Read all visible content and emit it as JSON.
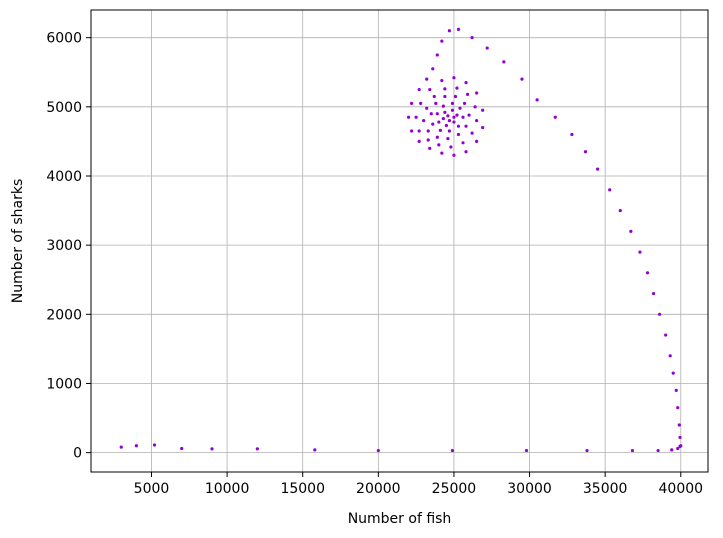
{
  "chart_data": {
    "type": "scatter",
    "title": "",
    "xlabel": "Number of fish",
    "ylabel": "Number of sharks",
    "xlim": [
      1000,
      41800
    ],
    "ylim": [
      -280,
      6400
    ],
    "xticks": [
      5000,
      10000,
      15000,
      20000,
      25000,
      30000,
      35000,
      40000
    ],
    "yticks": [
      0,
      1000,
      2000,
      3000,
      4000,
      5000,
      6000
    ],
    "grid": true,
    "legend": "none",
    "marker_color": "#9400d3",
    "series": [
      {
        "approximate": true,
        "points": [
          [
            40000,
            100
          ],
          [
            39950,
            220
          ],
          [
            39900,
            400
          ],
          [
            39800,
            650
          ],
          [
            39700,
            900
          ],
          [
            39500,
            1150
          ],
          [
            39300,
            1400
          ],
          [
            39000,
            1700
          ],
          [
            38600,
            2000
          ],
          [
            38200,
            2300
          ],
          [
            37800,
            2600
          ],
          [
            37300,
            2900
          ],
          [
            36700,
            3200
          ],
          [
            36000,
            3500
          ],
          [
            35300,
            3800
          ],
          [
            34500,
            4100
          ],
          [
            33700,
            4350
          ],
          [
            32800,
            4600
          ],
          [
            31700,
            4850
          ],
          [
            30500,
            5100
          ],
          [
            29500,
            5400
          ],
          [
            28300,
            5650
          ],
          [
            27200,
            5850
          ],
          [
            26200,
            6000
          ],
          [
            25300,
            6120
          ],
          [
            24700,
            6100
          ],
          [
            24200,
            5950
          ],
          [
            23900,
            5750
          ],
          [
            23600,
            5550
          ],
          [
            23200,
            5400
          ],
          [
            22700,
            5250
          ],
          [
            22200,
            5050
          ],
          [
            22000,
            4850
          ],
          [
            22200,
            4650
          ],
          [
            22700,
            4500
          ],
          [
            23400,
            4400
          ],
          [
            24200,
            4330
          ],
          [
            25000,
            4300
          ],
          [
            25800,
            4350
          ],
          [
            26500,
            4500
          ],
          [
            26900,
            4700
          ],
          [
            26900,
            4950
          ],
          [
            26500,
            5200
          ],
          [
            25800,
            5350
          ],
          [
            25000,
            5420
          ],
          [
            24200,
            5380
          ],
          [
            23400,
            5250
          ],
          [
            22800,
            5050
          ],
          [
            22500,
            4850
          ],
          [
            22700,
            4650
          ],
          [
            23300,
            4520
          ],
          [
            24000,
            4450
          ],
          [
            24800,
            4420
          ],
          [
            25600,
            4480
          ],
          [
            26200,
            4620
          ],
          [
            26500,
            4800
          ],
          [
            26400,
            5000
          ],
          [
            25900,
            5180
          ],
          [
            25200,
            5270
          ],
          [
            24400,
            5260
          ],
          [
            23700,
            5150
          ],
          [
            23200,
            4980
          ],
          [
            23000,
            4800
          ],
          [
            23300,
            4650
          ],
          [
            23900,
            4560
          ],
          [
            24600,
            4540
          ],
          [
            25300,
            4600
          ],
          [
            25800,
            4720
          ],
          [
            26000,
            4880
          ],
          [
            25700,
            5050
          ],
          [
            25100,
            5150
          ],
          [
            24400,
            5150
          ],
          [
            23800,
            5050
          ],
          [
            23500,
            4900
          ],
          [
            23600,
            4750
          ],
          [
            24100,
            4660
          ],
          [
            24700,
            4650
          ],
          [
            25300,
            4720
          ],
          [
            25600,
            4850
          ],
          [
            25400,
            4980
          ],
          [
            24900,
            5050
          ],
          [
            24300,
            5010
          ],
          [
            23900,
            4900
          ],
          [
            24000,
            4780
          ],
          [
            24500,
            4730
          ],
          [
            25000,
            4780
          ],
          [
            25200,
            4880
          ],
          [
            24900,
            4950
          ],
          [
            24400,
            4920
          ],
          [
            24300,
            4830
          ],
          [
            24700,
            4800
          ],
          [
            25000,
            4850
          ],
          [
            24600,
            4870
          ],
          [
            3000,
            80
          ],
          [
            4000,
            100
          ],
          [
            5200,
            110
          ],
          [
            7000,
            60
          ],
          [
            9000,
            55
          ],
          [
            12000,
            55
          ],
          [
            15800,
            40
          ],
          [
            20000,
            30
          ],
          [
            24900,
            30
          ],
          [
            29800,
            30
          ],
          [
            33800,
            30
          ],
          [
            36800,
            30
          ],
          [
            38500,
            30
          ],
          [
            39400,
            40
          ],
          [
            39800,
            60
          ],
          [
            39950,
            90
          ]
        ]
      }
    ]
  }
}
